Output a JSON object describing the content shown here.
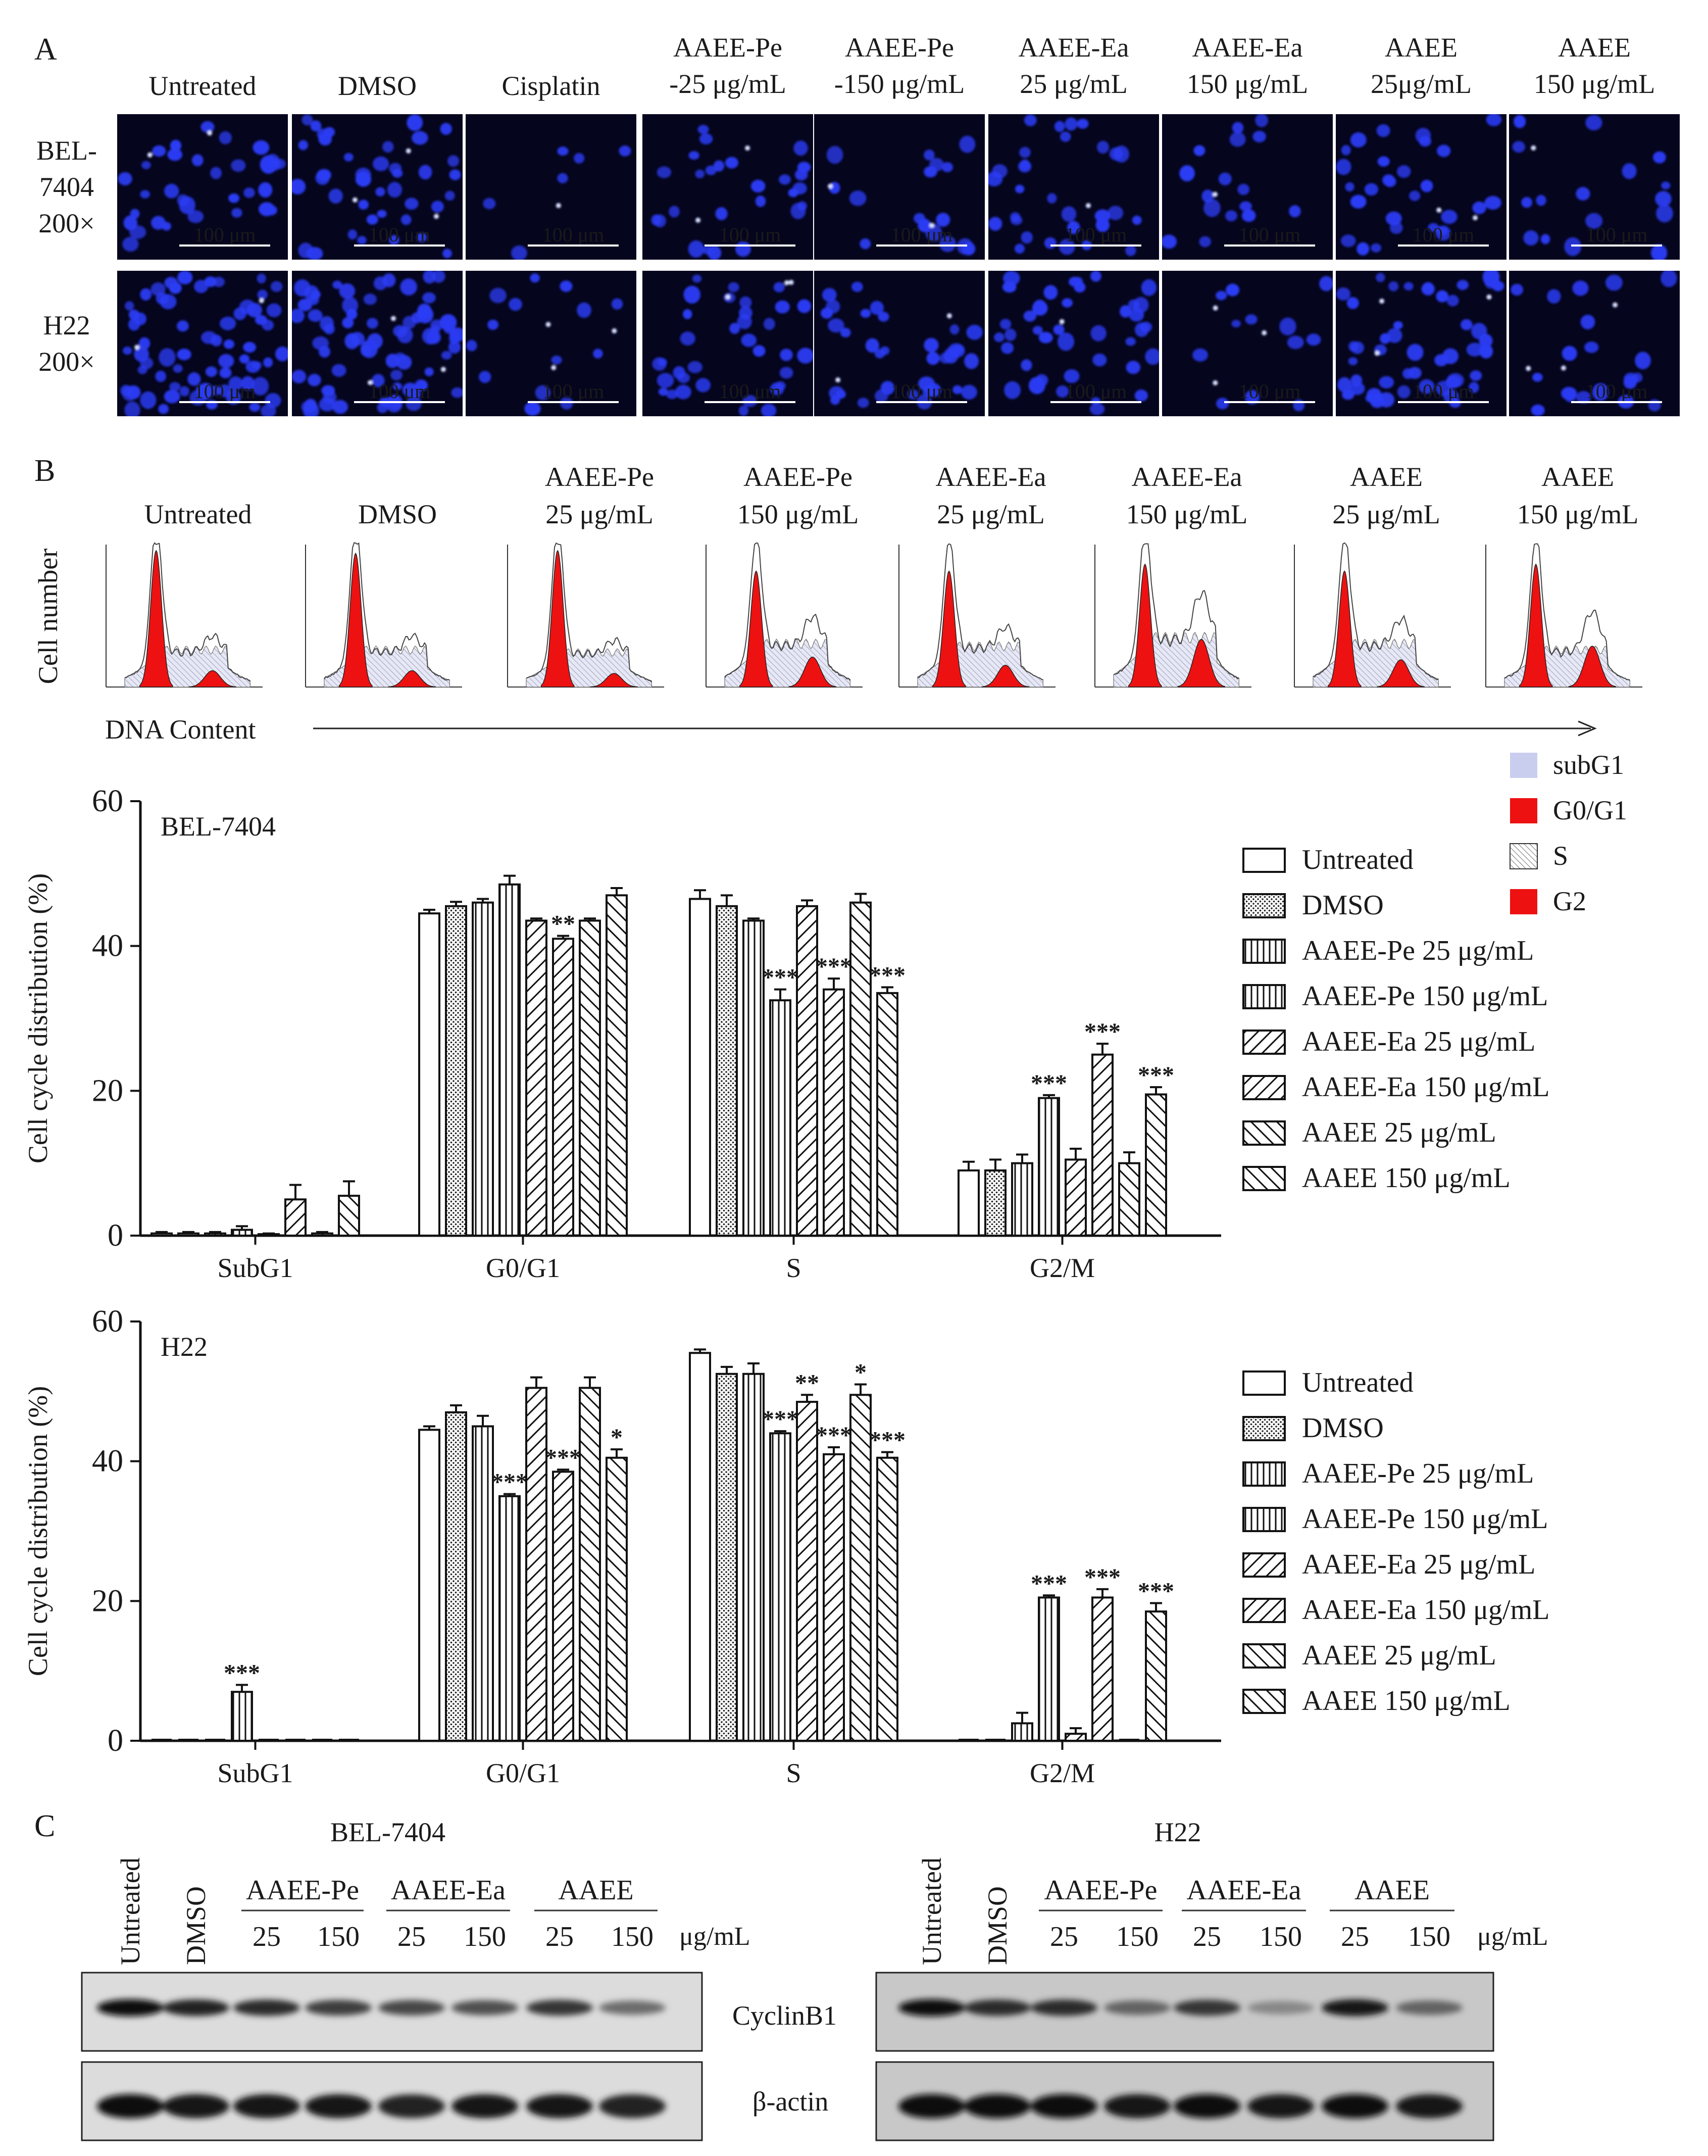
{
  "panel_letters": {
    "a": "A",
    "b": "B",
    "c": "C"
  },
  "panel_a": {
    "groups": [
      {
        "label": [
          "Untreated"
        ]
      },
      {
        "label": [
          "DMSO"
        ]
      },
      {
        "label": [
          "Cisplatin"
        ]
      },
      {
        "label": [
          "AAEE-Pe",
          "-25 μg/mL"
        ]
      },
      {
        "label": [
          "AAEE-Pe",
          "-150 μg/mL"
        ]
      },
      {
        "label": [
          "AAEE-Ea",
          "25 μg/mL"
        ]
      },
      {
        "label": [
          "AAEE-Ea",
          "150 μg/mL"
        ]
      },
      {
        "label": [
          "AAEE",
          "25μg/mL"
        ]
      },
      {
        "label": [
          "AAEE",
          "150 μg/mL"
        ]
      }
    ],
    "rows": [
      {
        "label": [
          "BEL-",
          "7404",
          "200×"
        ]
      },
      {
        "label": [
          "H22",
          "200×"
        ]
      }
    ],
    "scale_bar": "100 μm",
    "image_description": "DAPI/Hoechst-stained blue nuclei fluorescence micrographs",
    "colors": {
      "background": "#05051e",
      "nucleus": "#2b3cf5",
      "bright": "#d8e0ff"
    }
  },
  "panel_b": {
    "groups": [
      {
        "label": [
          "Untreated"
        ]
      },
      {
        "label": [
          "DMSO"
        ]
      },
      {
        "label": [
          "AAEE-Pe",
          "25 μg/mL"
        ]
      },
      {
        "label": [
          "AAEE-Pe",
          "150 μg/mL"
        ]
      },
      {
        "label": [
          "AAEE-Ea",
          "25 μg/mL"
        ]
      },
      {
        "label": [
          "AAEE-Ea",
          "150 μg/mL"
        ]
      },
      {
        "label": [
          "AAEE",
          "25 μg/mL"
        ]
      },
      {
        "label": [
          "AAEE",
          "150 μg/mL"
        ]
      }
    ],
    "y_axis": "Cell number",
    "x_axis": "DNA Content",
    "histogram_sizes": [
      {
        "g0": 1.0,
        "s": 0.3,
        "g2": 0.12
      },
      {
        "g0": 0.98,
        "s": 0.3,
        "g2": 0.12
      },
      {
        "g0": 1.0,
        "s": 0.28,
        "g2": 0.1
      },
      {
        "g0": 0.85,
        "s": 0.35,
        "g2": 0.22
      },
      {
        "g0": 0.85,
        "s": 0.33,
        "g2": 0.16
      },
      {
        "g0": 0.9,
        "s": 0.4,
        "g2": 0.35
      },
      {
        "g0": 0.85,
        "s": 0.35,
        "g2": 0.2
      },
      {
        "g0": 0.9,
        "s": 0.3,
        "g2": 0.3
      }
    ],
    "legend": [
      {
        "label": "subG1",
        "color": "#c9cdee",
        "pattern": "solid"
      },
      {
        "label": "G0/G1",
        "color": "#ee1111",
        "pattern": "solid"
      },
      {
        "label": "S",
        "color": "#ffffff",
        "pattern": "hatch"
      },
      {
        "label": "G2",
        "color": "#ee1111",
        "pattern": "solid"
      }
    ]
  },
  "chart_data": [
    {
      "type": "bar",
      "title": "BEL-7404",
      "xlabel": "",
      "ylabel": "Cell cycle distribution (%)",
      "ylim": [
        0,
        60
      ],
      "yticks": [
        "0",
        "20",
        "40",
        "60"
      ],
      "categories": [
        "SubG1",
        "G0/G1",
        "S",
        "G2/M"
      ],
      "series": [
        {
          "name": "Untreated",
          "pattern": "open",
          "values": [
            0.3,
            44.5,
            46.5,
            9.0
          ],
          "errors": [
            0.2,
            0.5,
            1.2,
            1.2
          ],
          "stars": [
            "",
            "",
            "",
            ""
          ]
        },
        {
          "name": "DMSO",
          "pattern": "dots",
          "values": [
            0.3,
            45.5,
            45.5,
            9.0
          ],
          "errors": [
            0.2,
            0.6,
            1.5,
            1.5
          ],
          "stars": [
            "",
            "",
            "",
            ""
          ]
        },
        {
          "name": "AAEE-Pe 25 μg/mL",
          "pattern": "vlines",
          "values": [
            0.3,
            46.0,
            43.5,
            10.0
          ],
          "errors": [
            0.2,
            0.5,
            0.3,
            1.2
          ],
          "stars": [
            "",
            "",
            "",
            ""
          ]
        },
        {
          "name": "AAEE-Pe 150 μg/mL",
          "pattern": "vlines",
          "values": [
            0.8,
            48.5,
            32.5,
            19.0
          ],
          "errors": [
            0.5,
            1.2,
            1.5,
            0.4
          ],
          "stars": [
            "",
            "",
            "***",
            "***"
          ]
        },
        {
          "name": "AAEE-Ea 25 μg/mL",
          "pattern": "diag",
          "values": [
            0.2,
            43.5,
            45.5,
            10.5
          ],
          "errors": [
            0.1,
            0.3,
            0.8,
            1.5
          ],
          "stars": [
            "",
            "",
            "",
            ""
          ]
        },
        {
          "name": "AAEE-Ea 150 μg/mL",
          "pattern": "diag",
          "values": [
            5.0,
            41.0,
            34.0,
            25.0
          ],
          "errors": [
            2.0,
            0.4,
            1.5,
            1.5
          ],
          "stars": [
            "",
            "**",
            "***",
            "***"
          ]
        },
        {
          "name": "AAEE 25 μg/mL",
          "pattern": "back",
          "values": [
            0.3,
            43.5,
            46.0,
            10.0
          ],
          "errors": [
            0.2,
            0.3,
            1.2,
            1.5
          ],
          "stars": [
            "",
            "",
            "",
            ""
          ]
        },
        {
          "name": "AAEE 150 μg/mL",
          "pattern": "back",
          "values": [
            5.5,
            47.0,
            33.5,
            19.5
          ],
          "errors": [
            2.0,
            1.0,
            0.8,
            1.0
          ],
          "stars": [
            "",
            "",
            "***",
            "***"
          ]
        }
      ]
    },
    {
      "type": "bar",
      "title": "H22",
      "xlabel": "",
      "ylabel": "Cell cycle distribution (%)",
      "ylim": [
        0,
        60
      ],
      "yticks": [
        "0",
        "20",
        "40",
        "60"
      ],
      "categories": [
        "SubG1",
        "G0/G1",
        "S",
        "G2/M"
      ],
      "series": [
        {
          "name": "Untreated",
          "pattern": "open",
          "values": [
            0.0,
            44.5,
            55.5,
            0.0
          ],
          "errors": [
            0.0,
            0.5,
            0.5,
            0.0
          ],
          "stars": [
            "",
            "",
            "",
            ""
          ]
        },
        {
          "name": "DMSO",
          "pattern": "dots",
          "values": [
            0.0,
            47.0,
            52.5,
            0.0
          ],
          "errors": [
            0.0,
            1.0,
            1.0,
            0.0
          ],
          "stars": [
            "",
            "",
            "",
            ""
          ]
        },
        {
          "name": "AAEE-Pe 25 μg/mL",
          "pattern": "vlines",
          "values": [
            0.0,
            45.0,
            52.5,
            2.5
          ],
          "errors": [
            0.0,
            1.5,
            1.5,
            1.5
          ],
          "stars": [
            "",
            "",
            "",
            ""
          ]
        },
        {
          "name": "AAEE-Pe 150 μg/mL",
          "pattern": "vlines",
          "values": [
            7.0,
            35.0,
            44.0,
            20.5
          ],
          "errors": [
            1.0,
            0.3,
            0.3,
            0.3
          ],
          "stars": [
            "***",
            "***",
            "***",
            "***"
          ]
        },
        {
          "name": "AAEE-Ea 25 μg/mL",
          "pattern": "diag",
          "values": [
            0.0,
            50.5,
            48.5,
            1.0
          ],
          "errors": [
            0.0,
            1.5,
            1.0,
            0.8
          ],
          "stars": [
            "",
            "",
            "**",
            ""
          ]
        },
        {
          "name": "AAEE-Ea 150 μg/mL",
          "pattern": "diag",
          "values": [
            0.0,
            38.5,
            41.0,
            20.5
          ],
          "errors": [
            0.0,
            0.3,
            1.0,
            1.2
          ],
          "stars": [
            "",
            "***",
            "***",
            "***"
          ]
        },
        {
          "name": "AAEE 25 μg/mL",
          "pattern": "back",
          "values": [
            0.0,
            50.5,
            49.5,
            0.0
          ],
          "errors": [
            0.0,
            1.5,
            1.5,
            0.0
          ],
          "stars": [
            "",
            "",
            "*",
            ""
          ]
        },
        {
          "name": "AAEE 150 μg/mL",
          "pattern": "back",
          "values": [
            0.0,
            40.5,
            40.5,
            18.5
          ],
          "errors": [
            0.0,
            1.2,
            0.8,
            1.2
          ],
          "stars": [
            "",
            "*",
            "***",
            "***"
          ]
        }
      ]
    }
  ],
  "panel_c": {
    "blots": [
      {
        "title": "BEL-7404",
        "single_lanes": [
          "Untreated",
          "DMSO"
        ],
        "groups": [
          "AAEE-Pe",
          "AAEE-Ea",
          "AAEE"
        ],
        "doses": [
          "25",
          "150",
          "25",
          "150",
          "25",
          "150"
        ],
        "unit": "μg/mL",
        "cyclin_intensity": [
          1.0,
          0.9,
          0.85,
          0.75,
          0.7,
          0.65,
          0.8,
          0.5
        ],
        "actin_intensity": [
          1.0,
          0.95,
          0.95,
          0.95,
          0.9,
          0.95,
          0.95,
          0.9
        ]
      },
      {
        "title": "H22",
        "single_lanes": [
          "Untreated",
          "DMSO"
        ],
        "groups": [
          "AAEE-Pe",
          "AAEE-Ea",
          "AAEE"
        ],
        "doses": [
          "25",
          "150",
          "25",
          "150",
          "25",
          "150"
        ],
        "unit": "μg/mL",
        "cyclin_intensity": [
          1.0,
          0.85,
          0.85,
          0.55,
          0.8,
          0.35,
          0.95,
          0.55
        ],
        "actin_intensity": [
          1.0,
          1.0,
          1.0,
          0.95,
          1.0,
          0.95,
          1.0,
          0.95
        ]
      }
    ],
    "bands": [
      "CyclinB1",
      "β-actin"
    ]
  }
}
